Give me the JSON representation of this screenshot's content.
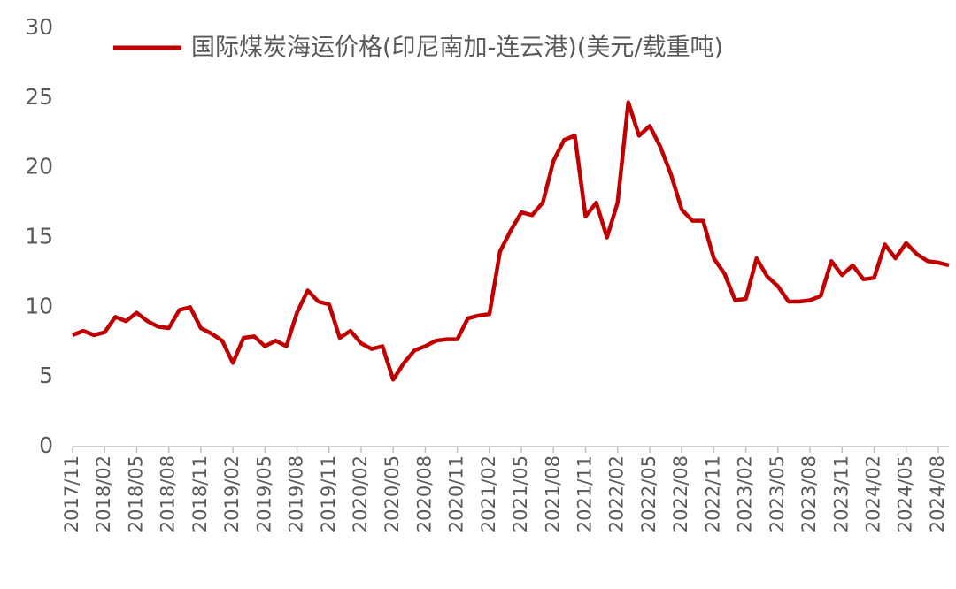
{
  "chart_data": {
    "type": "line",
    "categories": [
      "2017/11",
      null,
      null,
      "2018/02",
      null,
      null,
      "2018/05",
      null,
      null,
      "2018/08",
      null,
      null,
      "2018/11",
      null,
      null,
      "2019/02",
      null,
      null,
      "2019/05",
      null,
      null,
      "2019/08",
      null,
      null,
      "2019/11",
      null,
      null,
      "2020/02",
      null,
      null,
      "2020/05",
      null,
      null,
      "2020/08",
      null,
      null,
      "2020/11",
      null,
      null,
      "2021/02",
      null,
      null,
      "2021/05",
      null,
      null,
      "2021/08",
      null,
      null,
      "2021/11",
      null,
      null,
      "2022/02",
      null,
      null,
      "2022/05",
      null,
      null,
      "2022/08",
      null,
      null,
      "2022/11",
      null,
      null,
      "2023/02",
      null,
      null,
      "2023/05",
      null,
      null,
      "2023/08",
      null,
      null,
      "2023/11",
      null,
      null,
      "2024/02",
      null,
      null,
      "2024/05",
      null,
      null,
      "2024/08",
      null
    ],
    "series": [
      {
        "name": "国际煤炭海运价格(印尼南加-连云港)(美元/载重吨)",
        "color": "#c00000",
        "values": [
          8.0,
          8.3,
          8.0,
          8.2,
          9.3,
          9.0,
          9.6,
          9.0,
          8.6,
          8.5,
          9.8,
          10.0,
          8.5,
          8.1,
          7.6,
          6.0,
          7.8,
          7.9,
          7.2,
          7.6,
          7.2,
          9.6,
          11.2,
          10.4,
          10.2,
          7.8,
          8.3,
          7.4,
          7.0,
          7.2,
          4.8,
          6.0,
          6.9,
          7.2,
          7.6,
          7.7,
          7.7,
          9.2,
          9.4,
          9.5,
          14.0,
          15.5,
          16.8,
          16.6,
          17.5,
          20.5,
          22.0,
          22.3,
          16.5,
          17.5,
          15.0,
          17.5,
          24.7,
          22.3,
          23.0,
          21.5,
          19.5,
          17.0,
          16.2,
          16.2,
          13.5,
          12.4,
          10.5,
          10.6,
          13.5,
          12.2,
          11.5,
          10.4,
          10.4,
          10.5,
          10.8,
          13.3,
          12.3,
          13.0,
          12.0,
          12.1,
          14.5,
          13.5,
          14.6,
          13.8,
          13.3,
          13.2,
          13.0
        ]
      }
    ],
    "ylim": [
      0,
      30
    ],
    "yticks": [
      0,
      5,
      10,
      15,
      20,
      25,
      30
    ],
    "legend": "top"
  }
}
